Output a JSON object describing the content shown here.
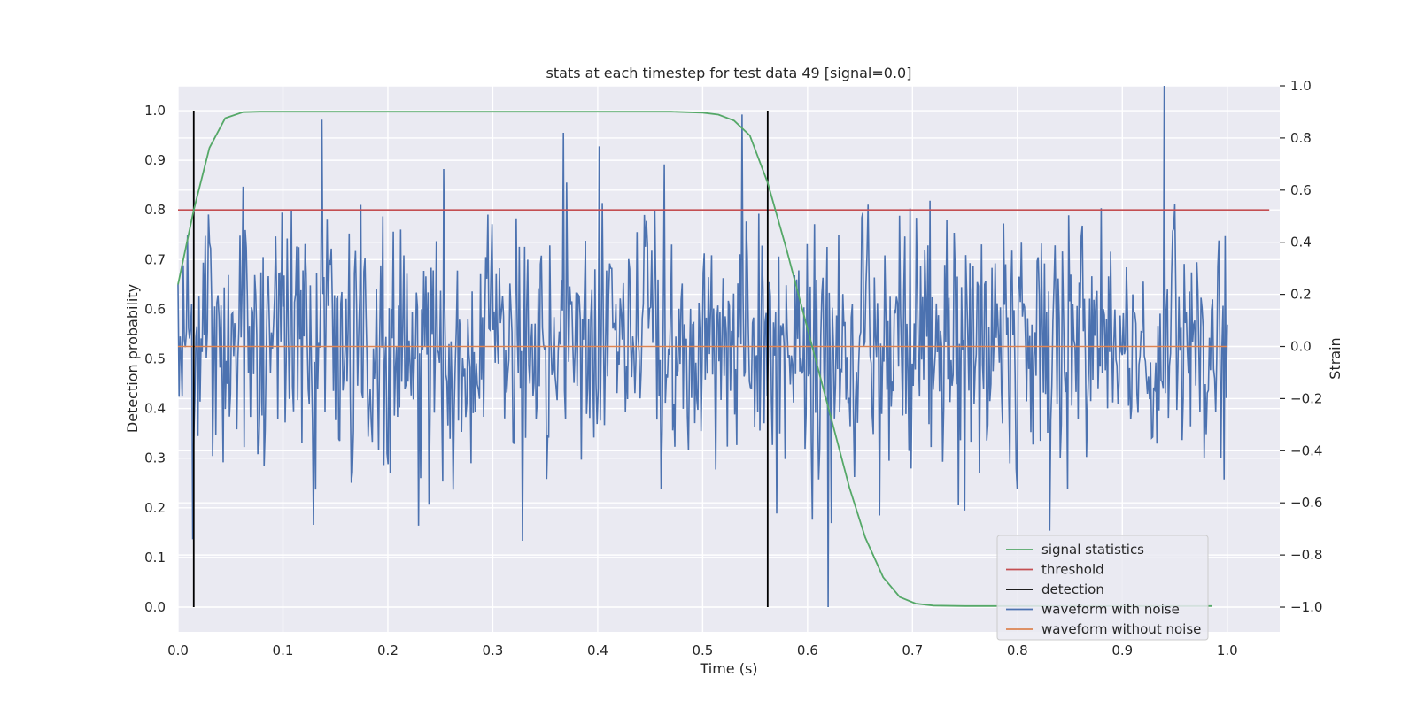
{
  "chart_data": {
    "type": "line",
    "title": "stats at each timestep for test data 49 [signal=0.0]",
    "xlabel": "Time (s)",
    "ylabel": "Detection probability",
    "y2label": "Strain",
    "xlim": [
      0.0,
      1.05
    ],
    "ylim": [
      -0.05,
      1.05
    ],
    "y2lim": [
      -1.095,
      1.0
    ],
    "xticks": [
      0.0,
      0.1,
      0.2,
      0.3,
      0.4,
      0.5,
      0.6,
      0.7,
      0.8,
      0.9,
      1.0
    ],
    "yticks": [
      0.0,
      0.1,
      0.2,
      0.3,
      0.4,
      0.5,
      0.6,
      0.7,
      0.8,
      0.9,
      1.0
    ],
    "y2ticks": [
      -1.0,
      -0.8,
      -0.6,
      -0.4,
      -0.2,
      0.0,
      0.2,
      0.4,
      0.6,
      0.8,
      1.0
    ],
    "xtick_labels": [
      "0.0",
      "0.1",
      "0.2",
      "0.3",
      "0.4",
      "0.5",
      "0.6",
      "0.7",
      "0.8",
      "0.9",
      "1.0"
    ],
    "ytick_labels": [
      "0.0",
      "0.1",
      "0.2",
      "0.3",
      "0.4",
      "0.5",
      "0.6",
      "0.7",
      "0.8",
      "0.9",
      "1.0"
    ],
    "y2tick_labels": [
      "−1.0",
      "−0.8",
      "−0.6",
      "−0.4",
      "−0.2",
      "0.0",
      "0.2",
      "0.4",
      "0.6",
      "0.8",
      "1.0"
    ],
    "grid": true,
    "legend_position": "lower-right",
    "series": [
      {
        "name": "signal statistics",
        "axis": "left",
        "color": "#55a868",
        "x": [
          0.0,
          0.015,
          0.03,
          0.045,
          0.062,
          0.078,
          0.1,
          0.2,
          0.3,
          0.4,
          0.47,
          0.5,
          0.515,
          0.53,
          0.545,
          0.562,
          0.58,
          0.6,
          0.62,
          0.64,
          0.655,
          0.672,
          0.688,
          0.703,
          0.72,
          0.75,
          0.8,
          0.9,
          0.985
        ],
        "y": [
          0.65,
          0.8,
          0.925,
          0.985,
          0.997,
          0.998,
          0.998,
          0.998,
          0.998,
          0.998,
          0.998,
          0.996,
          0.992,
          0.98,
          0.95,
          0.855,
          0.72,
          0.56,
          0.4,
          0.24,
          0.14,
          0.06,
          0.02,
          0.007,
          0.003,
          0.002,
          0.002,
          0.002,
          0.002
        ]
      },
      {
        "name": "threshold",
        "axis": "left",
        "color": "#c44e52",
        "x": [
          0.0,
          1.04
        ],
        "y": [
          0.8,
          0.8
        ]
      },
      {
        "name": "detection",
        "axis": "left",
        "color": "#000000",
        "segments": [
          {
            "x": 0.015,
            "y": [
              0.0,
              1.0
            ]
          },
          {
            "x": 0.562,
            "y": [
              0.0,
              1.0
            ]
          }
        ]
      },
      {
        "name": "waveform with noise",
        "axis": "right",
        "color": "#4c72b0",
        "x_range": [
          0.0,
          1.0
        ],
        "n_points": 1000,
        "y_range": [
          -1.0,
          1.0
        ],
        "peaks": [
          {
            "x": 0.137,
            "y": 0.87
          },
          {
            "x": 0.538,
            "y": 0.89
          },
          {
            "x": 0.94,
            "y": 1.0
          },
          {
            "x": 0.62,
            "y": -1.0
          },
          {
            "x": 0.014,
            "y": -0.74
          }
        ]
      },
      {
        "name": "waveform without noise",
        "axis": "right",
        "color": "#dd8452",
        "x": [
          0.0,
          1.0
        ],
        "y": [
          0.0,
          0.0
        ]
      }
    ]
  }
}
